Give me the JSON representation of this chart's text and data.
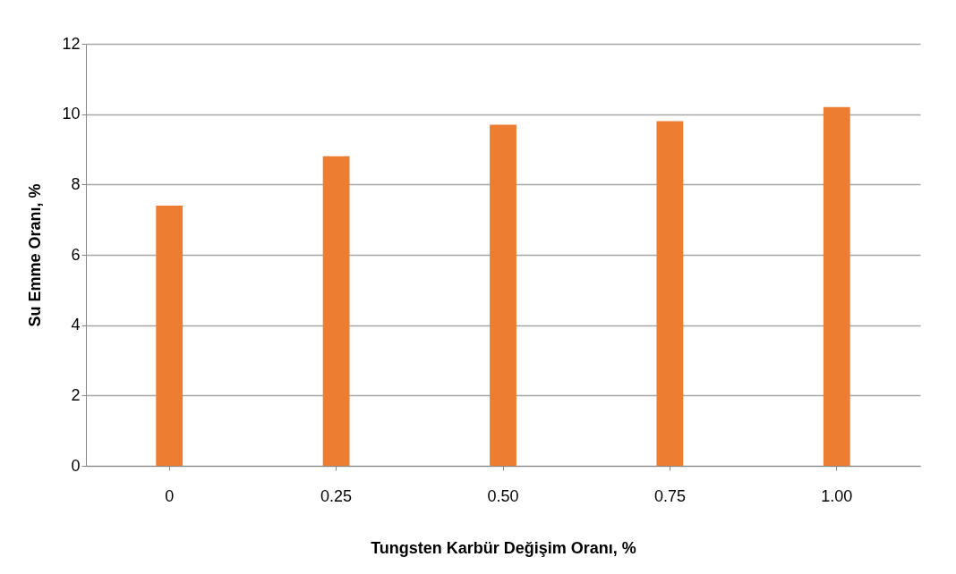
{
  "chart_data": {
    "type": "bar",
    "xlabel": "Tungsten Karbür Değişim Oranı, %",
    "ylabel": "Su Emme Oranı, %",
    "categories": [
      "0",
      "0.25",
      "0.50",
      "0.75",
      "1.00"
    ],
    "values": [
      7.4,
      8.8,
      9.7,
      9.8,
      10.2
    ],
    "color": "#ed7d31",
    "ylim": [
      0,
      12
    ],
    "yticks": [
      0,
      2,
      4,
      6,
      8,
      10,
      12
    ],
    "grid": "y"
  }
}
